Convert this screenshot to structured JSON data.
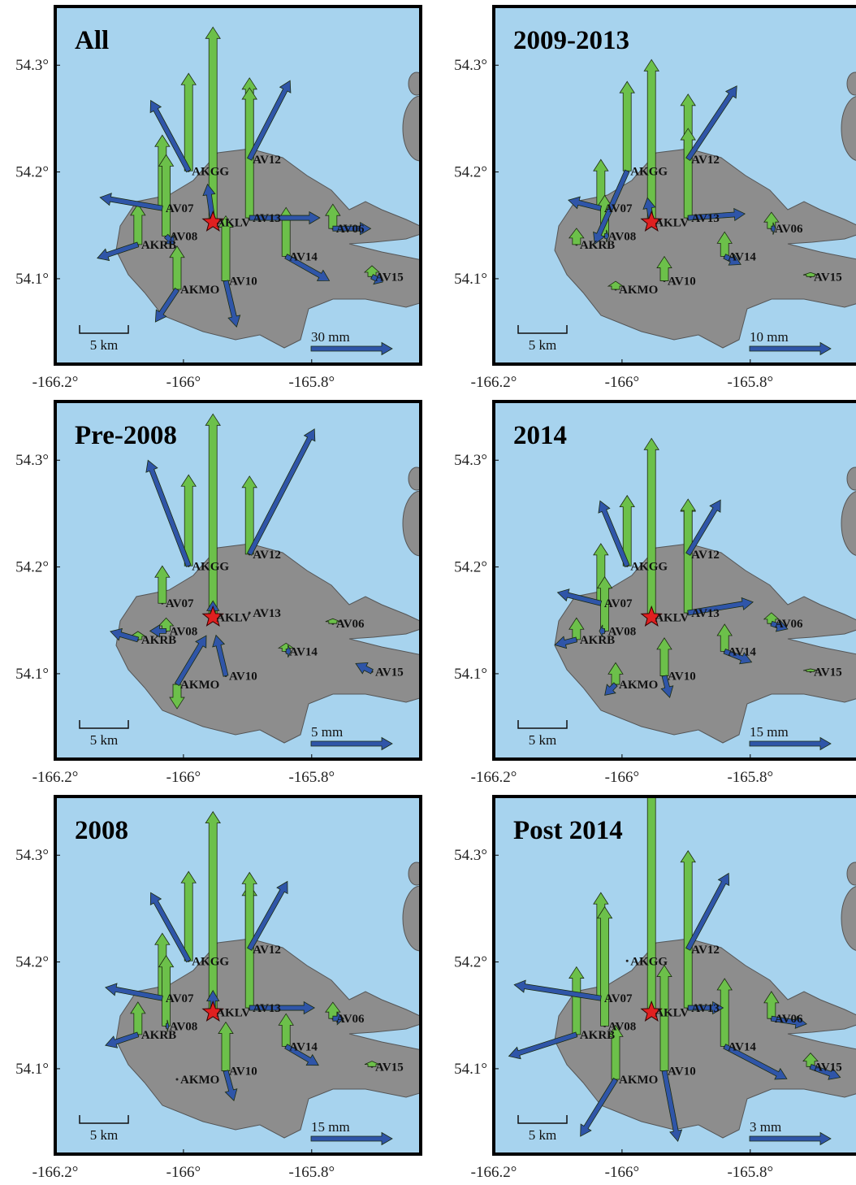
{
  "map": {
    "lonlim": [
      -166.2,
      -165.63
    ],
    "latlim": [
      54.02,
      54.355
    ],
    "xticks": [
      {
        "value": -166.2,
        "label": "-166.2°"
      },
      {
        "value": -166,
        "label": "-166°"
      },
      {
        "value": -165.8,
        "label": "-165.8°"
      }
    ],
    "yticks": [
      {
        "value": 54.3,
        "label": "54.3°"
      },
      {
        "value": 54.2,
        "label": "54.2°"
      },
      {
        "value": 54.1,
        "label": "54.1°"
      }
    ],
    "vent": {
      "lon": -165.954,
      "lat": 54.153
    },
    "stations": [
      {
        "name": "AKGG",
        "lon": -165.992,
        "lat": 54.201
      },
      {
        "name": "AV12",
        "lon": -165.897,
        "lat": 54.212
      },
      {
        "name": "AV07",
        "lon": -166.033,
        "lat": 54.166
      },
      {
        "name": "AKLV",
        "lon": -165.954,
        "lat": 54.153
      },
      {
        "name": "AV13",
        "lon": -165.897,
        "lat": 54.157
      },
      {
        "name": "AV06",
        "lon": -165.767,
        "lat": 54.147
      },
      {
        "name": "AV08",
        "lon": -166.027,
        "lat": 54.14
      },
      {
        "name": "AKRB",
        "lon": -166.071,
        "lat": 54.132
      },
      {
        "name": "AV14",
        "lon": -165.84,
        "lat": 54.121
      },
      {
        "name": "AV15",
        "lon": -165.706,
        "lat": 54.102
      },
      {
        "name": "AKMO",
        "lon": -166.01,
        "lat": 54.09
      },
      {
        "name": "AV10",
        "lon": -165.934,
        "lat": 54.098
      }
    ],
    "panels": [
      {
        "title": "All",
        "km_label": "5 km",
        "scale": {
          "value": 30,
          "label": "30 mm"
        },
        "vectors": [
          [
            -14,
            26,
            36
          ],
          [
            15,
            29,
            30
          ],
          [
            -23,
            4,
            27
          ],
          [
            -2,
            14,
            72
          ],
          [
            26,
            0,
            48
          ],
          [
            14,
            0,
            9
          ],
          [
            3,
            -3,
            30
          ],
          [
            -15,
            -5,
            15
          ],
          [
            16,
            -9,
            18
          ],
          [
            4,
            -2,
            4
          ],
          [
            -8,
            -12,
            16
          ],
          [
            4,
            -17,
            24
          ]
        ]
      },
      {
        "title": "2009-2013",
        "km_label": "5 km",
        "scale": {
          "value": 10,
          "label": "10 mm"
        },
        "vectors": [
          [
            -4,
            -9,
            11
          ],
          [
            6,
            9,
            8
          ],
          [
            -4,
            1,
            6
          ],
          [
            -0.5,
            3,
            20
          ],
          [
            7,
            0.5,
            11
          ],
          [
            0.5,
            0,
            2
          ],
          [
            0.5,
            0,
            5
          ],
          [
            0,
            0,
            2
          ],
          [
            2,
            -1,
            3
          ],
          [
            0,
            0,
            0.5
          ],
          [
            0,
            0,
            1
          ],
          [
            0,
            0,
            3
          ]
        ]
      },
      {
        "title": "Pre-2008",
        "km_label": "5 km",
        "scale": {
          "value": 5,
          "label": "5 mm"
        },
        "vectors": [
          [
            -2.5,
            6.5,
            5.6
          ],
          [
            4,
            7.7,
            4.8
          ],
          [
            0,
            0,
            2.3
          ],
          [
            0,
            1,
            12.5
          ],
          [
            null,
            null,
            null
          ],
          [
            0,
            0,
            0.3
          ],
          [
            -1,
            0,
            0.8
          ],
          [
            -1.7,
            0.5,
            0.5
          ],
          [
            0.3,
            0,
            0.5
          ],
          [
            -1,
            0.5,
            null
          ],
          [
            1.8,
            3,
            -1.5
          ],
          [
            -0.6,
            2.5,
            null
          ]
        ]
      },
      {
        "title": "2014",
        "km_label": "5 km",
        "scale": {
          "value": 15,
          "label": "15 mm"
        },
        "vectors": [
          [
            -5,
            12,
            13
          ],
          [
            6,
            10,
            10
          ],
          [
            -8,
            2,
            11
          ],
          [
            0,
            0,
            33
          ],
          [
            12,
            2,
            21
          ],
          [
            3,
            -1,
            2
          ],
          [
            -1,
            0,
            10
          ],
          [
            -4,
            -1,
            4
          ],
          [
            5,
            -2,
            5
          ],
          [
            0,
            0,
            0.5
          ],
          [
            -2,
            -2,
            4
          ],
          [
            1,
            -4,
            7
          ]
        ]
      },
      {
        "title": "2008",
        "km_label": "5 km",
        "scale": {
          "value": 15,
          "label": "15 mm"
        },
        "vectors": [
          [
            -7,
            12.6,
            16.5
          ],
          [
            7,
            12.5,
            12
          ],
          [
            -10.5,
            2,
            12
          ],
          [
            0,
            4,
            37
          ],
          [
            12,
            0,
            25
          ],
          [
            2,
            0,
            3
          ],
          [
            0.5,
            0,
            13
          ],
          [
            -6,
            -2,
            6
          ],
          [
            6,
            -3.5,
            6
          ],
          [
            0,
            0,
            1
          ],
          [
            null,
            null,
            null
          ],
          [
            1.5,
            -5.5,
            9
          ]
        ]
      },
      {
        "title": "Post 2014",
        "km_label": "5 km",
        "scale": {
          "value": 3,
          "label": "3 mm"
        },
        "vectors": [
          [
            null,
            null,
            null
          ],
          [
            1.5,
            2.8,
            null
          ],
          [
            -3.2,
            0.5,
            3.9
          ],
          [
            0,
            0,
            8.8
          ],
          [
            1.3,
            0,
            5.8
          ],
          [
            1.3,
            -0.2,
            1
          ],
          [
            0,
            0,
            4.4
          ],
          [
            -2.5,
            -0.8,
            2.5
          ],
          [
            2.3,
            -1.2,
            2.5
          ],
          [
            1.1,
            -0.4,
            0.5
          ],
          [
            -1.3,
            -2.1,
            2
          ],
          [
            0.5,
            -2.6,
            3.9
          ]
        ]
      }
    ]
  }
}
